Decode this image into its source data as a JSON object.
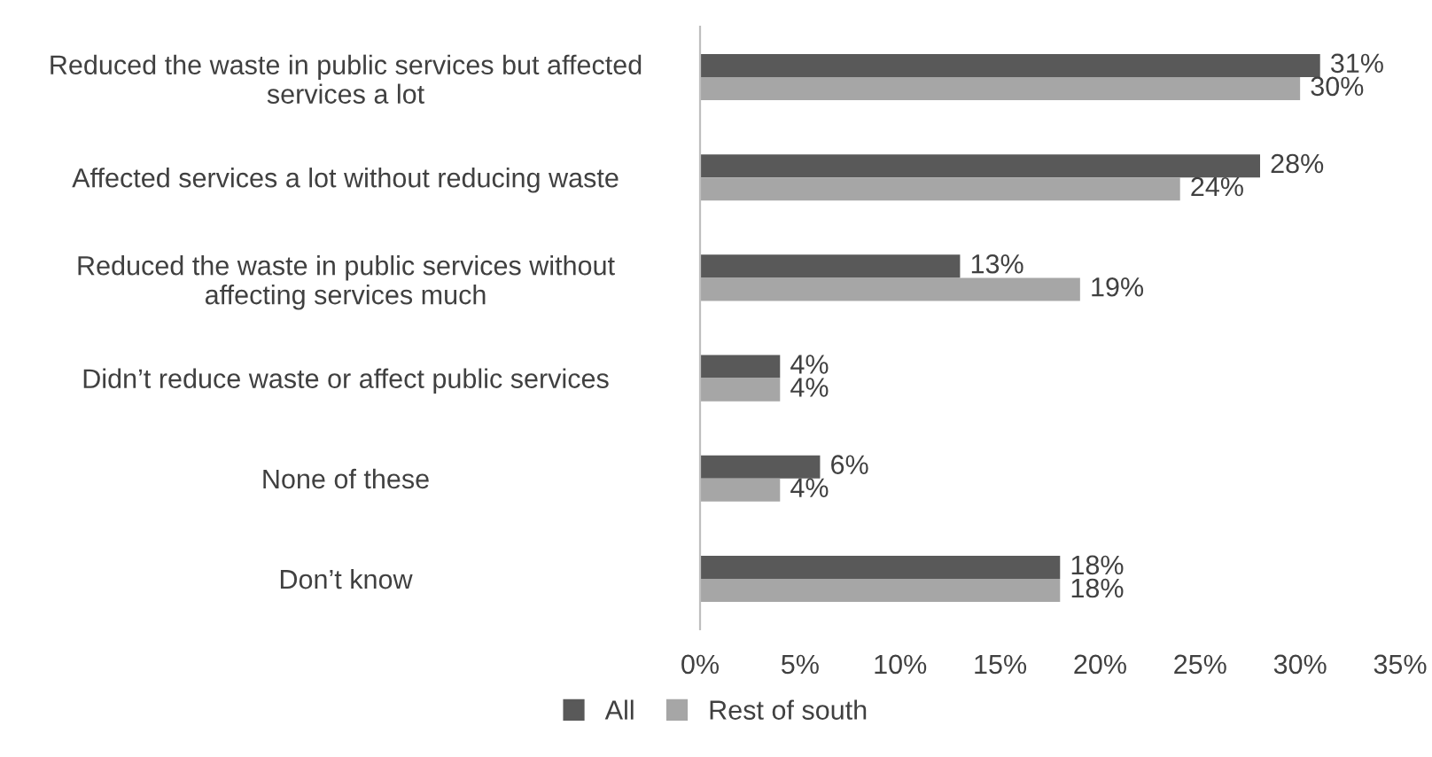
{
  "chart_data": {
    "type": "bar",
    "orientation": "horizontal",
    "categories": [
      "Reduced the waste in public services but affected\nservices a lot",
      "Affected services a lot without reducing waste",
      "Reduced the waste in public services without\naffecting services much",
      "Didn’t reduce waste or affect public services",
      "None of these",
      "Don’t know"
    ],
    "series": [
      {
        "name": "All",
        "color": "#595959",
        "values": [
          31,
          28,
          13,
          4,
          6,
          18
        ],
        "value_labels": [
          "31%",
          "28%",
          "13%",
          "4%",
          "6%",
          "18%"
        ]
      },
      {
        "name": "Rest of south",
        "color": "#a6a6a6",
        "values": [
          30,
          24,
          19,
          4,
          4,
          18
        ],
        "value_labels": [
          "30%",
          "24%",
          "19%",
          "4%",
          "4%",
          "18%"
        ]
      }
    ],
    "xlim": [
      0,
      35
    ],
    "xticks": [
      {
        "value": 0,
        "label": "0%"
      },
      {
        "value": 5,
        "label": "5%"
      },
      {
        "value": 10,
        "label": "10%"
      },
      {
        "value": 15,
        "label": "15%"
      },
      {
        "value": 20,
        "label": "20%"
      },
      {
        "value": 25,
        "label": "25%"
      },
      {
        "value": 30,
        "label": "30%"
      },
      {
        "value": 35,
        "label": "35%"
      }
    ],
    "grid": false,
    "legend": "bottom"
  }
}
